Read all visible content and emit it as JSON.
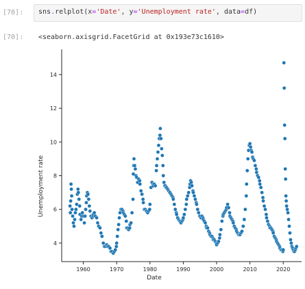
{
  "input_cell": {
    "prompt": "[70]:",
    "code_tokens": [
      {
        "t": "sns",
        "c": "name"
      },
      {
        "t": ".",
        "c": "op"
      },
      {
        "t": "relplot(x",
        "c": "name"
      },
      {
        "t": "=",
        "c": "op"
      },
      {
        "t": "'Date'",
        "c": "str"
      },
      {
        "t": ", y",
        "c": "punc"
      },
      {
        "t": "=",
        "c": "op"
      },
      {
        "t": "'Unemployment rate'",
        "c": "str"
      },
      {
        "t": ", data",
        "c": "punc"
      },
      {
        "t": "=",
        "c": "op"
      },
      {
        "t": "df)",
        "c": "name"
      }
    ]
  },
  "output_cell": {
    "prompt": "[70]:",
    "repr": "<seaborn.axisgrid.FacetGrid at 0x193e73c1610>"
  },
  "chart_data": {
    "type": "scatter",
    "xlabel": "Date",
    "ylabel": "Unemployment rate",
    "xlim": [
      1953.5,
      2025.5
    ],
    "ylim": [
      2.9,
      15.5
    ],
    "xticks": [
      1960,
      1970,
      1980,
      1990,
      2000,
      2010,
      2020
    ],
    "yticks": [
      4,
      6,
      8,
      10,
      12,
      14
    ],
    "color": "#1f77b4",
    "points": [
      [
        1956,
        6.2
      ],
      [
        1956.1,
        5.8
      ],
      [
        1956.2,
        6.5
      ],
      [
        1956.3,
        7.5
      ],
      [
        1956.4,
        7.2
      ],
      [
        1956.5,
        6.8
      ],
      [
        1956.6,
        6.0
      ],
      [
        1956.8,
        5.6
      ],
      [
        1957,
        5.2
      ],
      [
        1957.2,
        5.0
      ],
      [
        1957.4,
        5.4
      ],
      [
        1957.6,
        5.8
      ],
      [
        1957.8,
        6.0
      ],
      [
        1958,
        6.3
      ],
      [
        1958.2,
        6.9
      ],
      [
        1958.4,
        7.2
      ],
      [
        1958.5,
        7.0
      ],
      [
        1958.7,
        6.6
      ],
      [
        1958.9,
        6.2
      ],
      [
        1959,
        5.7
      ],
      [
        1959.3,
        5.4
      ],
      [
        1959.5,
        5.6
      ],
      [
        1959.7,
        5.8
      ],
      [
        1960,
        5.6
      ],
      [
        1960.3,
        5.2
      ],
      [
        1960.5,
        5.6
      ],
      [
        1960.7,
        6.0
      ],
      [
        1960.9,
        6.4
      ],
      [
        1961,
        6.8
      ],
      [
        1961.2,
        7.0
      ],
      [
        1961.4,
        6.9
      ],
      [
        1961.6,
        6.6
      ],
      [
        1961.8,
        6.2
      ],
      [
        1962,
        5.9
      ],
      [
        1962.3,
        5.6
      ],
      [
        1962.6,
        5.5
      ],
      [
        1962.9,
        5.6
      ],
      [
        1963,
        5.7
      ],
      [
        1963.3,
        5.8
      ],
      [
        1963.6,
        5.6
      ],
      [
        1964,
        5.5
      ],
      [
        1964.3,
        5.2
      ],
      [
        1964.6,
        5.0
      ],
      [
        1965,
        4.9
      ],
      [
        1965.3,
        4.6
      ],
      [
        1965.6,
        4.4
      ],
      [
        1966,
        4.0
      ],
      [
        1966.3,
        3.8
      ],
      [
        1966.6,
        3.8
      ],
      [
        1967,
        3.9
      ],
      [
        1967.3,
        3.8
      ],
      [
        1967.6,
        3.8
      ],
      [
        1968,
        3.7
      ],
      [
        1968.3,
        3.5
      ],
      [
        1968.6,
        3.5
      ],
      [
        1969,
        3.4
      ],
      [
        1969.3,
        3.5
      ],
      [
        1969.6,
        3.6
      ],
      [
        1969.9,
        3.8
      ],
      [
        1970,
        4.0
      ],
      [
        1970.2,
        4.4
      ],
      [
        1970.4,
        4.8
      ],
      [
        1970.6,
        5.1
      ],
      [
        1970.8,
        5.5
      ],
      [
        1971,
        5.8
      ],
      [
        1971.3,
        6.0
      ],
      [
        1971.6,
        6.0
      ],
      [
        1971.9,
        5.9
      ],
      [
        1972,
        5.8
      ],
      [
        1972.3,
        5.7
      ],
      [
        1972.6,
        5.6
      ],
      [
        1972.9,
        5.3
      ],
      [
        1973,
        4.9
      ],
      [
        1973.3,
        4.9
      ],
      [
        1973.6,
        4.8
      ],
      [
        1973.9,
        4.9
      ],
      [
        1974,
        5.1
      ],
      [
        1974.3,
        5.2
      ],
      [
        1974.6,
        5.8
      ],
      [
        1974.9,
        6.6
      ],
      [
        1975,
        8.1
      ],
      [
        1975.1,
        8.6
      ],
      [
        1975.2,
        9.0
      ],
      [
        1975.4,
        8.6
      ],
      [
        1975.6,
        8.4
      ],
      [
        1975.8,
        8.0
      ],
      [
        1976,
        7.9
      ],
      [
        1976.3,
        7.6
      ],
      [
        1976.6,
        7.8
      ],
      [
        1976.9,
        7.7
      ],
      [
        1977,
        7.5
      ],
      [
        1977.3,
        7.1
      ],
      [
        1977.6,
        6.9
      ],
      [
        1977.9,
        6.6
      ],
      [
        1978,
        6.4
      ],
      [
        1978.3,
        6.0
      ],
      [
        1978.6,
        6.0
      ],
      [
        1978.9,
        5.9
      ],
      [
        1979,
        5.9
      ],
      [
        1979.3,
        5.8
      ],
      [
        1979.6,
        5.9
      ],
      [
        1979.9,
        6.0
      ],
      [
        1980,
        6.3
      ],
      [
        1980.3,
        7.3
      ],
      [
        1980.6,
        7.6
      ],
      [
        1980.9,
        7.5
      ],
      [
        1981,
        7.4
      ],
      [
        1981.3,
        7.5
      ],
      [
        1981.6,
        7.4
      ],
      [
        1981.9,
        8.3
      ],
      [
        1982,
        8.6
      ],
      [
        1982.2,
        9.0
      ],
      [
        1982.4,
        9.4
      ],
      [
        1982.6,
        9.8
      ],
      [
        1982.8,
        10.2
      ],
      [
        1983,
        10.4
      ],
      [
        1983.1,
        10.8
      ],
      [
        1983.3,
        10.2
      ],
      [
        1983.5,
        9.6
      ],
      [
        1983.7,
        9.2
      ],
      [
        1983.9,
        8.6
      ],
      [
        1984,
        8.0
      ],
      [
        1984.2,
        7.6
      ],
      [
        1984.4,
        7.4
      ],
      [
        1984.6,
        7.4
      ],
      [
        1984.8,
        7.3
      ],
      [
        1985,
        7.3
      ],
      [
        1985.3,
        7.2
      ],
      [
        1985.6,
        7.1
      ],
      [
        1985.9,
        7.0
      ],
      [
        1986,
        7.0
      ],
      [
        1986.3,
        6.9
      ],
      [
        1986.6,
        6.8
      ],
      [
        1986.9,
        6.7
      ],
      [
        1987,
        6.6
      ],
      [
        1987.3,
        6.3
      ],
      [
        1987.6,
        6.0
      ],
      [
        1987.9,
        5.8
      ],
      [
        1988,
        5.7
      ],
      [
        1988.3,
        5.5
      ],
      [
        1988.6,
        5.4
      ],
      [
        1988.9,
        5.3
      ],
      [
        1989,
        5.3
      ],
      [
        1989.3,
        5.2
      ],
      [
        1989.6,
        5.3
      ],
      [
        1989.9,
        5.4
      ],
      [
        1990,
        5.5
      ],
      [
        1990.3,
        5.7
      ],
      [
        1990.6,
        6.0
      ],
      [
        1990.9,
        6.3
      ],
      [
        1991,
        6.6
      ],
      [
        1991.3,
        6.8
      ],
      [
        1991.6,
        7.0
      ],
      [
        1991.9,
        7.3
      ],
      [
        1992,
        7.5
      ],
      [
        1992.2,
        7.7
      ],
      [
        1992.4,
        7.6
      ],
      [
        1992.6,
        7.4
      ],
      [
        1992.9,
        7.1
      ],
      [
        1993,
        7.0
      ],
      [
        1993.3,
        6.8
      ],
      [
        1993.6,
        6.6
      ],
      [
        1993.9,
        6.4
      ],
      [
        1994,
        6.3
      ],
      [
        1994.3,
        6.0
      ],
      [
        1994.6,
        5.8
      ],
      [
        1994.9,
        5.6
      ],
      [
        1995,
        5.6
      ],
      [
        1995.3,
        5.5
      ],
      [
        1995.6,
        5.6
      ],
      [
        1995.9,
        5.5
      ],
      [
        1996,
        5.4
      ],
      [
        1996.3,
        5.3
      ],
      [
        1996.6,
        5.2
      ],
      [
        1996.9,
        5.0
      ],
      [
        1997,
        4.9
      ],
      [
        1997.3,
        4.9
      ],
      [
        1997.6,
        4.7
      ],
      [
        1997.9,
        4.6
      ],
      [
        1998,
        4.5
      ],
      [
        1998.3,
        4.4
      ],
      [
        1998.6,
        4.4
      ],
      [
        1998.9,
        4.3
      ],
      [
        1999,
        4.2
      ],
      [
        1999.3,
        4.2
      ],
      [
        1999.6,
        4.1
      ],
      [
        1999.9,
        4.0
      ],
      [
        2000,
        3.9
      ],
      [
        2000.3,
        4.0
      ],
      [
        2000.6,
        4.1
      ],
      [
        2000.9,
        4.3
      ],
      [
        2001,
        4.5
      ],
      [
        2001.3,
        4.8
      ],
      [
        2001.6,
        5.3
      ],
      [
        2001.9,
        5.6
      ],
      [
        2002,
        5.7
      ],
      [
        2002.3,
        5.8
      ],
      [
        2002.6,
        5.9
      ],
      [
        2002.9,
        6.0
      ],
      [
        2003,
        6.1
      ],
      [
        2003.3,
        6.3
      ],
      [
        2003.6,
        6.1
      ],
      [
        2003.9,
        5.8
      ],
      [
        2004,
        5.6
      ],
      [
        2004.3,
        5.5
      ],
      [
        2004.6,
        5.4
      ],
      [
        2004.9,
        5.3
      ],
      [
        2005,
        5.2
      ],
      [
        2005.3,
        5.0
      ],
      [
        2005.6,
        4.9
      ],
      [
        2005.9,
        4.8
      ],
      [
        2006,
        4.7
      ],
      [
        2006.3,
        4.6
      ],
      [
        2006.6,
        4.5
      ],
      [
        2006.9,
        4.5
      ],
      [
        2007,
        4.5
      ],
      [
        2007.3,
        4.6
      ],
      [
        2007.6,
        4.7
      ],
      [
        2007.9,
        5.0
      ],
      [
        2008,
        5.0
      ],
      [
        2008.3,
        5.4
      ],
      [
        2008.6,
        6.0
      ],
      [
        2008.9,
        6.8
      ],
      [
        2009,
        7.5
      ],
      [
        2009.2,
        8.3
      ],
      [
        2009.4,
        9.0
      ],
      [
        2009.6,
        9.5
      ],
      [
        2009.8,
        9.8
      ],
      [
        2010,
        9.9
      ],
      [
        2010.2,
        9.7
      ],
      [
        2010.4,
        9.5
      ],
      [
        2010.6,
        9.4
      ],
      [
        2010.8,
        9.1
      ],
      [
        2011,
        9.0
      ],
      [
        2011.3,
        8.9
      ],
      [
        2011.6,
        8.6
      ],
      [
        2011.9,
        8.4
      ],
      [
        2012,
        8.2
      ],
      [
        2012.3,
        8.0
      ],
      [
        2012.6,
        7.9
      ],
      [
        2012.9,
        7.7
      ],
      [
        2013,
        7.5
      ],
      [
        2013.3,
        7.3
      ],
      [
        2013.6,
        7.0
      ],
      [
        2013.9,
        6.7
      ],
      [
        2014,
        6.5
      ],
      [
        2014.3,
        6.2
      ],
      [
        2014.6,
        6.0
      ],
      [
        2014.9,
        5.7
      ],
      [
        2015,
        5.5
      ],
      [
        2015.3,
        5.3
      ],
      [
        2015.6,
        5.1
      ],
      [
        2015.9,
        5.0
      ],
      [
        2016,
        4.9
      ],
      [
        2016.3,
        4.9
      ],
      [
        2016.6,
        4.8
      ],
      [
        2016.9,
        4.7
      ],
      [
        2017,
        4.6
      ],
      [
        2017.3,
        4.4
      ],
      [
        2017.6,
        4.3
      ],
      [
        2017.9,
        4.2
      ],
      [
        2018,
        4.1
      ],
      [
        2018.3,
        4.0
      ],
      [
        2018.6,
        3.9
      ],
      [
        2018.9,
        3.8
      ],
      [
        2019,
        3.7
      ],
      [
        2019.3,
        3.6
      ],
      [
        2019.6,
        3.6
      ],
      [
        2019.9,
        3.5
      ],
      [
        2020,
        3.6
      ],
      [
        2020.2,
        14.7
      ],
      [
        2020.3,
        13.2
      ],
      [
        2020.4,
        11.0
      ],
      [
        2020.5,
        10.2
      ],
      [
        2020.6,
        8.4
      ],
      [
        2020.7,
        7.8
      ],
      [
        2020.8,
        6.8
      ],
      [
        2020.9,
        6.5
      ],
      [
        2021,
        6.2
      ],
      [
        2021.2,
        6.0
      ],
      [
        2021.4,
        5.8
      ],
      [
        2021.6,
        5.4
      ],
      [
        2021.8,
        5.0
      ],
      [
        2022,
        4.6
      ],
      [
        2022.2,
        4.2
      ],
      [
        2022.4,
        4.0
      ],
      [
        2022.6,
        3.8
      ],
      [
        2022.8,
        3.7
      ],
      [
        2023,
        3.6
      ],
      [
        2023.2,
        3.5
      ],
      [
        2023.4,
        3.5
      ],
      [
        2023.6,
        3.6
      ],
      [
        2023.8,
        3.7
      ],
      [
        2024,
        3.8
      ]
    ]
  }
}
